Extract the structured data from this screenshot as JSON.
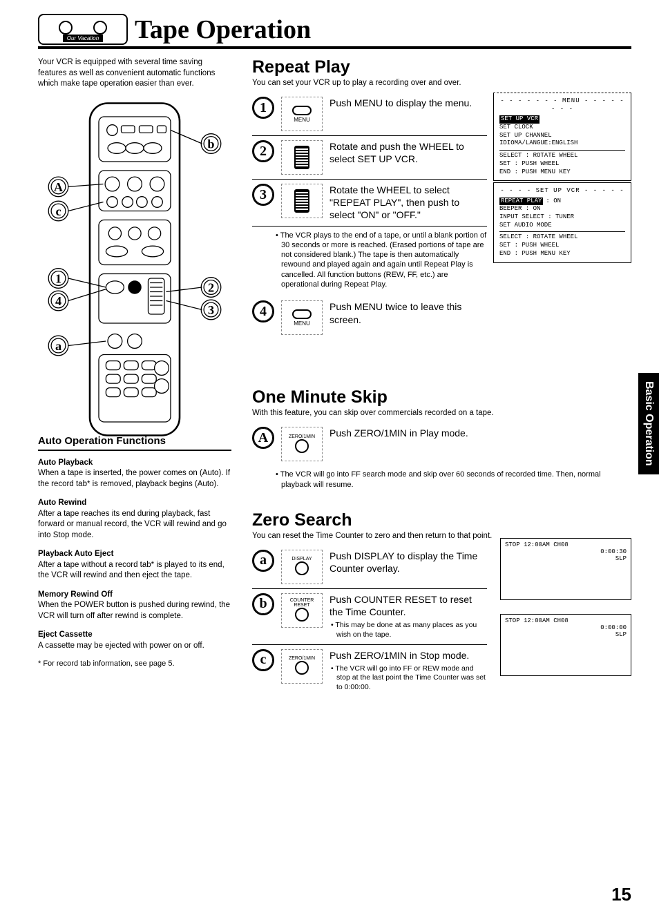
{
  "page": {
    "title": "Tape Operation",
    "tape_label": "Our Vacation",
    "page_number": "15",
    "side_tab": "Basic Operation"
  },
  "intro": "Your VCR is equipped with several time saving features as well as convenient automatic functions which make tape operation easier than ever.",
  "auto": {
    "heading": "Auto Operation Functions",
    "items": [
      {
        "title": "Auto Playback",
        "body": "When a tape is inserted, the power comes on (Auto). If the record tab* is removed, playback begins (Auto)."
      },
      {
        "title": "Auto Rewind",
        "body": "After a tape reaches its end during playback, fast forward or manual record, the VCR will rewind and go into Stop mode."
      },
      {
        "title": "Playback Auto Eject",
        "body": "After a tape without a record tab* is played to its end, the VCR will rewind and then eject the tape."
      },
      {
        "title": "Memory Rewind Off",
        "body": "When the POWER button is pushed during rewind, the VCR will turn off after rewind is complete."
      },
      {
        "title": "Eject Cassette",
        "body": "A cassette may be ejected with power on or off."
      }
    ],
    "footnote": "* For record tab information, see page 5."
  },
  "repeat": {
    "title": "Repeat Play",
    "sub": "You can set your VCR up to play a recording over and over.",
    "steps": [
      {
        "num": "1",
        "btn_type": "menu",
        "btn_label": "MENU",
        "text": "Push MENU to display the menu."
      },
      {
        "num": "2",
        "btn_type": "wheel",
        "btn_label": "",
        "text": "Rotate and push the WHEEL to select SET UP VCR."
      },
      {
        "num": "3",
        "btn_type": "wheel",
        "btn_label": "",
        "text": "Rotate the WHEEL to select \"REPEAT PLAY\", then push to select \"ON\" or \"OFF.\""
      },
      {
        "num": "4",
        "btn_type": "menu",
        "btn_label": "MENU",
        "text": "Push MENU twice to leave this screen."
      }
    ],
    "note": "The VCR plays to the end of a tape, or until a blank portion of 30 seconds or more is reached. (Erased portions of tape are not considered blank.) The tape is then automatically rewound and played again and again until Repeat Play is cancelled. All function buttons (REW, FF, etc.) are operational during Repeat Play.",
    "osd1": {
      "title": "- - - - - - - MENU - - - - - - - -",
      "hi": "SET UP VCR",
      "lines": [
        "SET CLOCK",
        "SET UP CHANNEL",
        "IDIOMA/LANGUE:ENGLISH"
      ],
      "footer": [
        "SELECT : ROTATE WHEEL",
        "SET    : PUSH WHEEL",
        "END    : PUSH MENU KEY"
      ]
    },
    "osd2": {
      "title": "- - - - SET UP VCR - - - - -",
      "hi": "REPEAT PLAY",
      "hi_val": ": ON",
      "lines": [
        "BEEPER        : ON",
        "INPUT SELECT  : TUNER",
        "SET AUDIO MODE"
      ],
      "footer": [
        "SELECT : ROTATE WHEEL",
        "SET    : PUSH WHEEL",
        "END    : PUSH MENU KEY"
      ]
    }
  },
  "skip": {
    "title": "One Minute Skip",
    "sub": "With this feature, you can skip over commercials recorded on a tape.",
    "step": {
      "num": "A",
      "btn_label": "ZERO/1MIN",
      "text": "Push ZERO/1MIN in Play mode."
    },
    "note": "The VCR will go into FF search mode and skip over 60 seconds of recorded time. Then, normal playback will resume."
  },
  "zero": {
    "title": "Zero Search",
    "sub": "You can reset the Time Counter to zero and then return to that point.",
    "steps": [
      {
        "num": "a",
        "btn_label": "DISPLAY",
        "text": "Push DISPLAY to display the Time Counter overlay."
      },
      {
        "num": "b",
        "btn_label": "COUNTER RESET",
        "text": "Push COUNTER RESET to reset the Time Counter.",
        "sub": "This may be done at as many places as you wish on the tape."
      },
      {
        "num": "c",
        "btn_label": "ZERO/1MIN",
        "text": "Push ZERO/1MIN in Stop mode.",
        "sub": "The VCR will go into FF or REW mode and stop at the last point the Time Counter was set to 0:00:00."
      }
    ],
    "tv1": {
      "line1": "STOP   12:00AM   CH08",
      "line2": "0:00:30",
      "line3": "SLP"
    },
    "tv2": {
      "line1": "STOP   12:00AM   CH08",
      "line2": "0:00:00",
      "line3": "SLP"
    }
  }
}
